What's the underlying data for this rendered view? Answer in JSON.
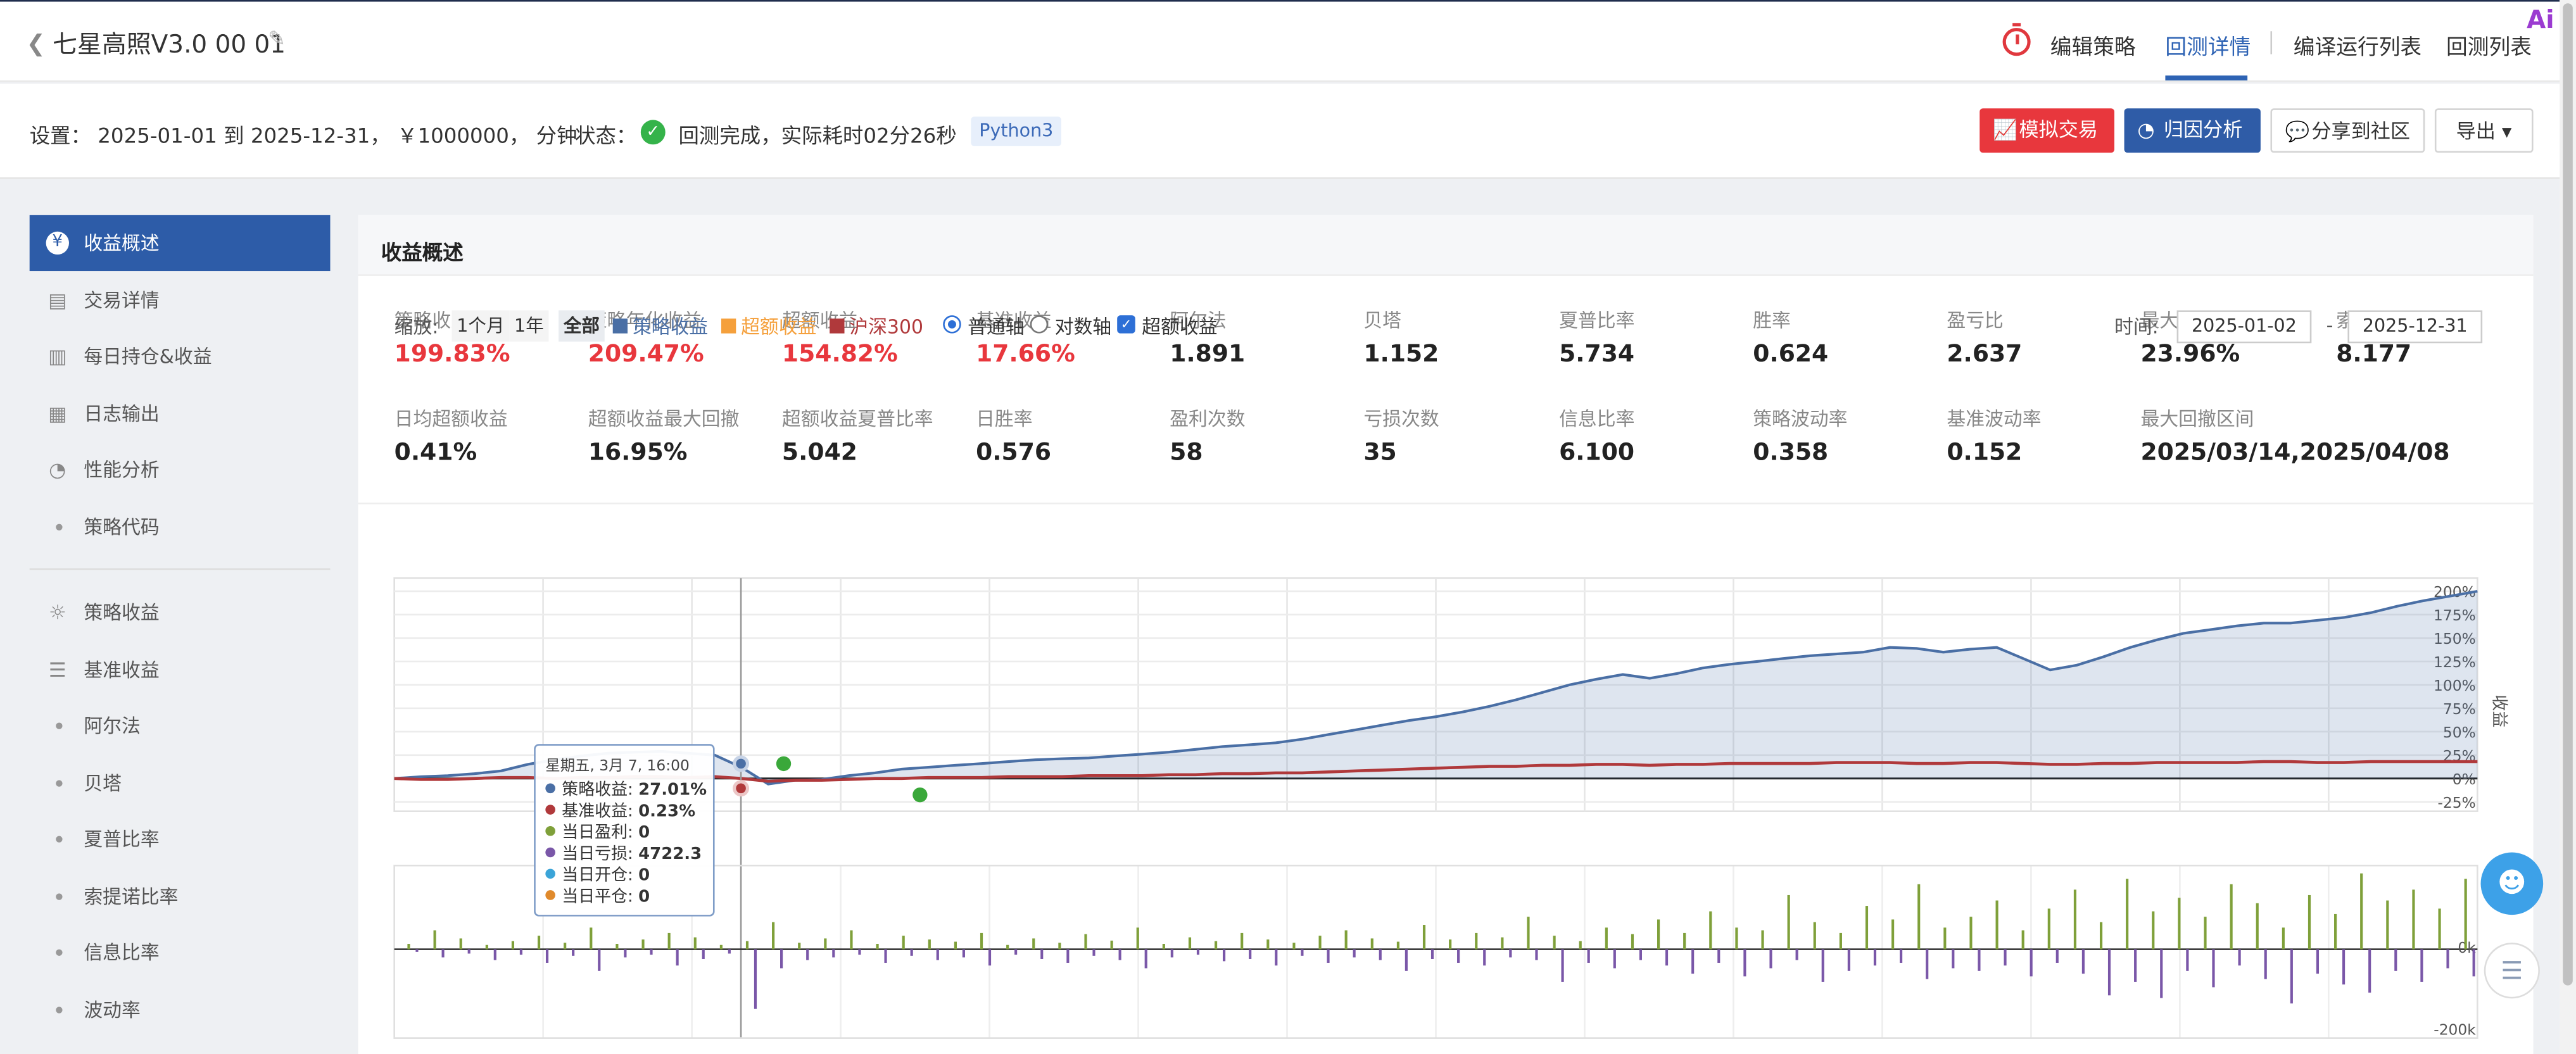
{
  "header": {
    "title": "七星高照V3.0 00 01",
    "nav": [
      "编辑策略",
      "回测详情",
      "编译运行列表",
      "回测列表"
    ],
    "active_nav": "回测详情"
  },
  "info": {
    "settings": "设置：  2025-01-01 到 2025-12-31， ￥1000000， 分钟",
    "status_label": "状态：",
    "status_text": "回测完成，实际耗时02分26秒",
    "language": "Python3"
  },
  "actions": {
    "simulate": "模拟交易",
    "attribution": "归因分析",
    "share": "分享到社区",
    "export": "导出"
  },
  "sidebar": {
    "items": [
      {
        "label": "收益概述",
        "icon": "yen-icon"
      },
      {
        "label": "交易详情",
        "icon": "document-icon"
      },
      {
        "label": "每日持仓&收益",
        "icon": "bar-chart-icon"
      },
      {
        "label": "日志输出",
        "icon": "calendar-icon"
      },
      {
        "label": "性能分析",
        "icon": "pie-chart-icon"
      },
      {
        "label": "策略代码",
        "icon": "dot"
      },
      {
        "label": "策略收益",
        "icon": "bulb-icon"
      },
      {
        "label": "基准收益",
        "icon": "database-icon"
      },
      {
        "label": "阿尔法",
        "icon": "dot"
      },
      {
        "label": "贝塔",
        "icon": "dot"
      },
      {
        "label": "夏普比率",
        "icon": "dot"
      },
      {
        "label": "索提诺比率",
        "icon": "dot"
      },
      {
        "label": "信息比率",
        "icon": "dot"
      },
      {
        "label": "波动率",
        "icon": "dot"
      }
    ]
  },
  "summary": {
    "title": "收益概述",
    "row1": [
      {
        "label": "策略收益",
        "value": "199.83%",
        "red": true
      },
      {
        "label": "策略年化收益",
        "value": "209.47%",
        "red": true
      },
      {
        "label": "超额收益",
        "value": "154.82%",
        "red": true
      },
      {
        "label": "基准收益",
        "value": "17.66%",
        "red": true
      },
      {
        "label": "阿尔法",
        "value": "1.891"
      },
      {
        "label": "贝塔",
        "value": "1.152"
      },
      {
        "label": "夏普比率",
        "value": "5.734"
      },
      {
        "label": "胜率",
        "value": "0.624"
      },
      {
        "label": "盈亏比",
        "value": "2.637"
      },
      {
        "label": "最大回撤",
        "value": "23.96%"
      },
      {
        "label": "索提诺比率",
        "value": "8.177"
      }
    ],
    "row2": [
      {
        "label": "日均超额收益",
        "value": "0.41%"
      },
      {
        "label": "超额收益最大回撤",
        "value": "16.95%"
      },
      {
        "label": "超额收益夏普比率",
        "value": "5.042"
      },
      {
        "label": "日胜率",
        "value": "0.576"
      },
      {
        "label": "盈利次数",
        "value": "58"
      },
      {
        "label": "亏损次数",
        "value": "35"
      },
      {
        "label": "信息比率",
        "value": "6.100"
      },
      {
        "label": "策略波动率",
        "value": "0.358"
      },
      {
        "label": "基准波动率",
        "value": "0.152"
      },
      {
        "label": "最大回撤区间",
        "value": "2025/03/14,2025/04/08"
      }
    ]
  },
  "chart_controls": {
    "zoom_label": "缩放:",
    "zoom_options": [
      "1个月",
      "1年",
      "全部"
    ],
    "zoom_selected": "全部",
    "legend": [
      {
        "label": "策略收益",
        "color": "#4a6fa5"
      },
      {
        "label": "超额收益",
        "color": "#f5a03c"
      },
      {
        "label": "沪深300",
        "color": "#b0393b"
      }
    ],
    "axis_modes": [
      "普通轴",
      "对数轴"
    ],
    "axis_selected": "普通轴",
    "excess_checkbox": "超额收益",
    "excess_checked": true,
    "time_label": "时间:",
    "date_from": "2025-01-02",
    "date_to": "2025-12-31",
    "date_sep": "-"
  },
  "tooltip": {
    "header": "星期五, 3月 7, 16:00",
    "rows": [
      {
        "label": "策略收益:",
        "value": "27.01%",
        "color": "#4a6fa5"
      },
      {
        "label": "基准收益:",
        "value": "0.23%",
        "color": "#b0393b"
      },
      {
        "label": "当日盈利:",
        "value": "0",
        "color": "#7fa03a"
      },
      {
        "label": "当日亏损:",
        "value": "4722.3",
        "color": "#7a57a8"
      },
      {
        "label": "当日开仓:",
        "value": "0",
        "color": "#3ba4d8"
      },
      {
        "label": "当日平仓:",
        "value": "0",
        "color": "#e08a2c"
      }
    ]
  },
  "chart_data": [
    {
      "type": "area",
      "ylabel": "收益",
      "y_ticks": [
        "200%",
        "175%",
        "150%",
        "125%",
        "100%",
        "75%",
        "50%",
        "25%",
        "0%",
        "-25%"
      ],
      "ylim": [
        -25,
        200
      ],
      "x_range": [
        "2025-01-02",
        "2025-12-31"
      ],
      "series": [
        {
          "name": "策略收益",
          "color": "#4a6fa5",
          "values": [
            0,
            2,
            3,
            5,
            8,
            15,
            20,
            24,
            27,
            28,
            29,
            27,
            25,
            12,
            -6,
            -2,
            -1,
            3,
            6,
            10,
            12,
            14,
            16,
            18,
            20,
            21,
            22,
            24,
            26,
            28,
            31,
            34,
            36,
            38,
            42,
            47,
            52,
            57,
            62,
            66,
            71,
            77,
            84,
            92,
            100,
            106,
            111,
            107,
            112,
            118,
            122,
            125,
            128,
            131,
            133,
            135,
            140,
            139,
            135,
            138,
            140,
            128,
            116,
            121,
            130,
            140,
            148,
            155,
            159,
            163,
            166,
            166,
            169,
            172,
            177,
            184,
            190,
            195,
            200
          ]
        },
        {
          "name": "沪深300",
          "color": "#b0393b",
          "values": [
            0,
            -1,
            -1,
            0,
            1,
            1,
            0,
            1,
            1,
            2,
            2,
            1,
            2,
            0,
            -3,
            -2,
            -2,
            -1,
            0,
            0,
            1,
            1,
            1,
            2,
            2,
            2,
            3,
            3,
            3,
            4,
            4,
            5,
            5,
            6,
            6,
            7,
            8,
            9,
            10,
            11,
            12,
            13,
            13,
            14,
            14,
            15,
            15,
            14,
            15,
            15,
            16,
            16,
            16,
            16,
            17,
            17,
            17,
            16,
            16,
            17,
            17,
            16,
            15,
            15,
            16,
            16,
            17,
            17,
            17,
            17,
            18,
            18,
            17,
            17,
            18,
            18,
            18,
            18,
            18
          ]
        }
      ]
    },
    {
      "type": "bar",
      "y_ticks": [
        "0k",
        "-200k"
      ],
      "series": [
        {
          "name": "当日盈利",
          "color": "#7fa03a",
          "values": [
            10,
            35,
            20,
            8,
            15,
            25,
            12,
            40,
            10,
            18,
            30,
            22,
            8,
            15,
            50,
            12,
            20,
            35,
            10,
            25,
            18,
            14,
            30,
            8,
            20,
            12,
            28,
            16,
            40,
            10,
            22,
            15,
            30,
            18,
            12,
            25,
            35,
            20,
            14,
            45,
            18,
            30,
            22,
            60,
            25,
            15,
            40,
            28,
            55,
            30,
            70,
            40,
            35,
            100,
            50,
            30,
            80,
            55,
            120,
            40,
            60,
            90,
            35,
            75,
            110,
            50,
            130,
            70,
            95,
            60,
            120,
            85,
            40,
            100,
            65,
            140,
            90,
            110,
            75,
            130
          ]
        },
        {
          "name": "当日亏损",
          "color": "#7a57a8",
          "values": [
            -5,
            -15,
            -8,
            -20,
            -10,
            -25,
            -12,
            -40,
            -15,
            -10,
            -30,
            -18,
            -8,
            -110,
            -35,
            -20,
            -15,
            -10,
            -25,
            -12,
            -20,
            -15,
            -30,
            -10,
            -18,
            -25,
            -12,
            -20,
            -35,
            -15,
            -10,
            -22,
            -18,
            -30,
            -12,
            -25,
            -15,
            -20,
            -40,
            -18,
            -25,
            -30,
            -15,
            -20,
            -60,
            -25,
            -35,
            -20,
            -30,
            -45,
            -25,
            -50,
            -35,
            -20,
            -60,
            -40,
            -30,
            -25,
            -55,
            -35,
            -40,
            -30,
            -50,
            -25,
            -45,
            -85,
            -60,
            -90,
            -40,
            -70,
            -30,
            -55,
            -100,
            -45,
            -65,
            -80,
            -40,
            -60,
            -35,
            -50
          ]
        }
      ]
    }
  ]
}
